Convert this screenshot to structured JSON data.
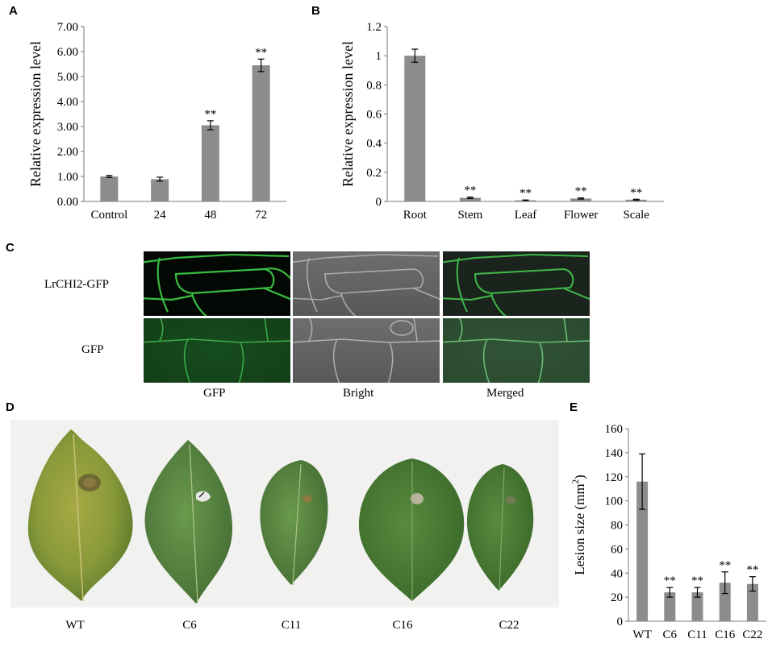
{
  "panels": {
    "A": "A",
    "B": "B",
    "C": "C",
    "D": "D",
    "E": "E"
  },
  "panel_c": {
    "row_labels": [
      "LrCHI2-GFP",
      "GFP"
    ],
    "col_labels": [
      "GFP",
      "Bright",
      "Merged"
    ],
    "colors": {
      "membrane_green": "#3fd04a",
      "gfp_fill": "#1f6a2a",
      "bright_edge": "#bdbdbd"
    }
  },
  "panel_d": {
    "leaf_labels": [
      "WT",
      "C6",
      "C11",
      "C16",
      "C22"
    ],
    "colors": {
      "background": "#f1f1ef",
      "leaf_wt": "#8a9a3a",
      "leaf_dark": "#3f6e2e",
      "lesion": "#8a7a40"
    }
  },
  "chart_data": [
    {
      "panel": "A",
      "type": "bar",
      "categories": [
        "Control",
        "24",
        "48",
        "72"
      ],
      "values": [
        1.0,
        0.89,
        3.05,
        5.45
      ],
      "errors": [
        0.04,
        0.08,
        0.18,
        0.25
      ],
      "significance": [
        "",
        "",
        "**",
        "**"
      ],
      "ylabel": "Relative expression level",
      "xlabel": "",
      "ylim": [
        0,
        7
      ],
      "yticks": [
        "0.00",
        "1.00",
        "2.00",
        "3.00",
        "4.00",
        "5.00",
        "6.00",
        "7.00"
      ],
      "bar_color": "#8c8c8c"
    },
    {
      "panel": "B",
      "type": "bar",
      "categories": [
        "Root",
        "Stem",
        "Leaf",
        "Flower",
        "Scale"
      ],
      "values": [
        1.0,
        0.025,
        0.008,
        0.02,
        0.012
      ],
      "errors": [
        0.045,
        0.005,
        0.002,
        0.004,
        0.003
      ],
      "significance": [
        "",
        "**",
        "**",
        "**",
        "**"
      ],
      "ylabel": "Relative expression level",
      "xlabel": "",
      "ylim": [
        0,
        1.2
      ],
      "yticks": [
        "0",
        "0.2",
        "0.4",
        "0.6",
        "0.8",
        "1",
        "1.2"
      ],
      "bar_color": "#8c8c8c"
    },
    {
      "panel": "E",
      "type": "bar",
      "categories": [
        "WT",
        "C6",
        "C11",
        "C16",
        "C22"
      ],
      "values": [
        116,
        24,
        24,
        32,
        31
      ],
      "errors": [
        23,
        4,
        4,
        9,
        6
      ],
      "significance": [
        "",
        "**",
        "**",
        "**",
        "**"
      ],
      "ylabel_main": "Lesion size (mm",
      "ylabel_sup": "2",
      "ylabel_end": ")",
      "xlabel": "",
      "ylim": [
        0,
        160
      ],
      "yticks": [
        "0",
        "20",
        "40",
        "60",
        "80",
        "100",
        "120",
        "140",
        "160"
      ],
      "bar_color": "#8c8c8c"
    }
  ]
}
